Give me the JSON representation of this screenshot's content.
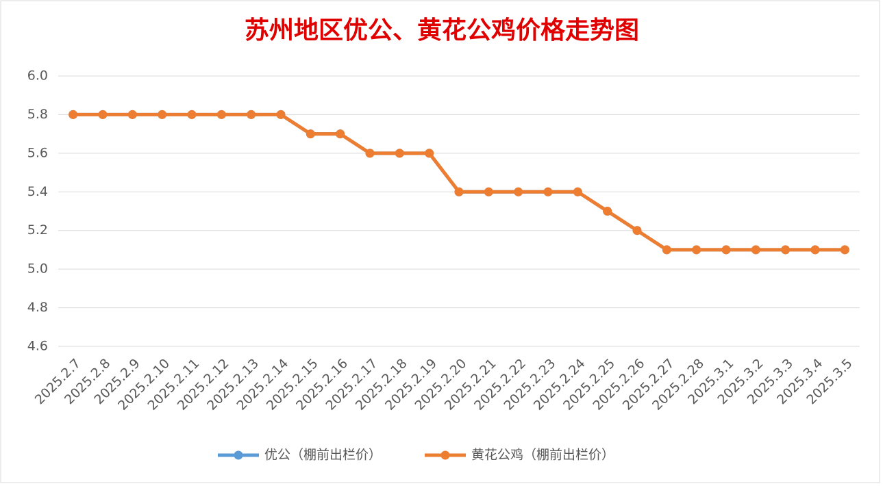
{
  "chart_data": {
    "type": "line",
    "title": "苏州地区优公、黄花公鸡价格走势图",
    "categories": [
      "2025.2.7",
      "2025.2.8",
      "2025.2.9",
      "2025.2.10",
      "2025.2.11",
      "2025.2.12",
      "2025.2.13",
      "2025.2.14",
      "2025.2.15",
      "2025.2.16",
      "2025.2.17",
      "2025.2.18",
      "2025.2.19",
      "2025.2.20",
      "2025.2.21",
      "2025.2.22",
      "2025.2.23",
      "2025.2.24",
      "2025.2.25",
      "2025.2.26",
      "2025.2.27",
      "2025.2.28",
      "2025.3.1",
      "2025.3.2",
      "2025.3.3",
      "2025.3.4",
      "2025.3.5"
    ],
    "series": [
      {
        "name": "优公（棚前出栏价）",
        "color": "#5b9bd5",
        "values": [
          5.8,
          5.8,
          5.8,
          5.8,
          5.8,
          5.8,
          5.8,
          5.8,
          5.7,
          5.7,
          5.6,
          5.6,
          5.6,
          5.4,
          5.4,
          5.4,
          5.4,
          5.4,
          5.3,
          5.2,
          5.1,
          5.1,
          5.1,
          5.1,
          5.1,
          5.1,
          5.1
        ]
      },
      {
        "name": "黄花公鸡（棚前出栏价）",
        "color": "#ed7d31",
        "values": [
          5.8,
          5.8,
          5.8,
          5.8,
          5.8,
          5.8,
          5.8,
          5.8,
          5.7,
          5.7,
          5.6,
          5.6,
          5.6,
          5.4,
          5.4,
          5.4,
          5.4,
          5.4,
          5.3,
          5.2,
          5.1,
          5.1,
          5.1,
          5.1,
          5.1,
          5.1,
          5.1
        ]
      }
    ],
    "ylim": [
      4.6,
      6.0
    ],
    "yticks": [
      4.6,
      4.8,
      {
        "value": 5.0,
        "label": "5.0"
      },
      5.2,
      5.4,
      5.6,
      5.8,
      {
        "value": 6.0,
        "label": "6.0"
      }
    ],
    "grid": true,
    "legend": "bottom"
  }
}
